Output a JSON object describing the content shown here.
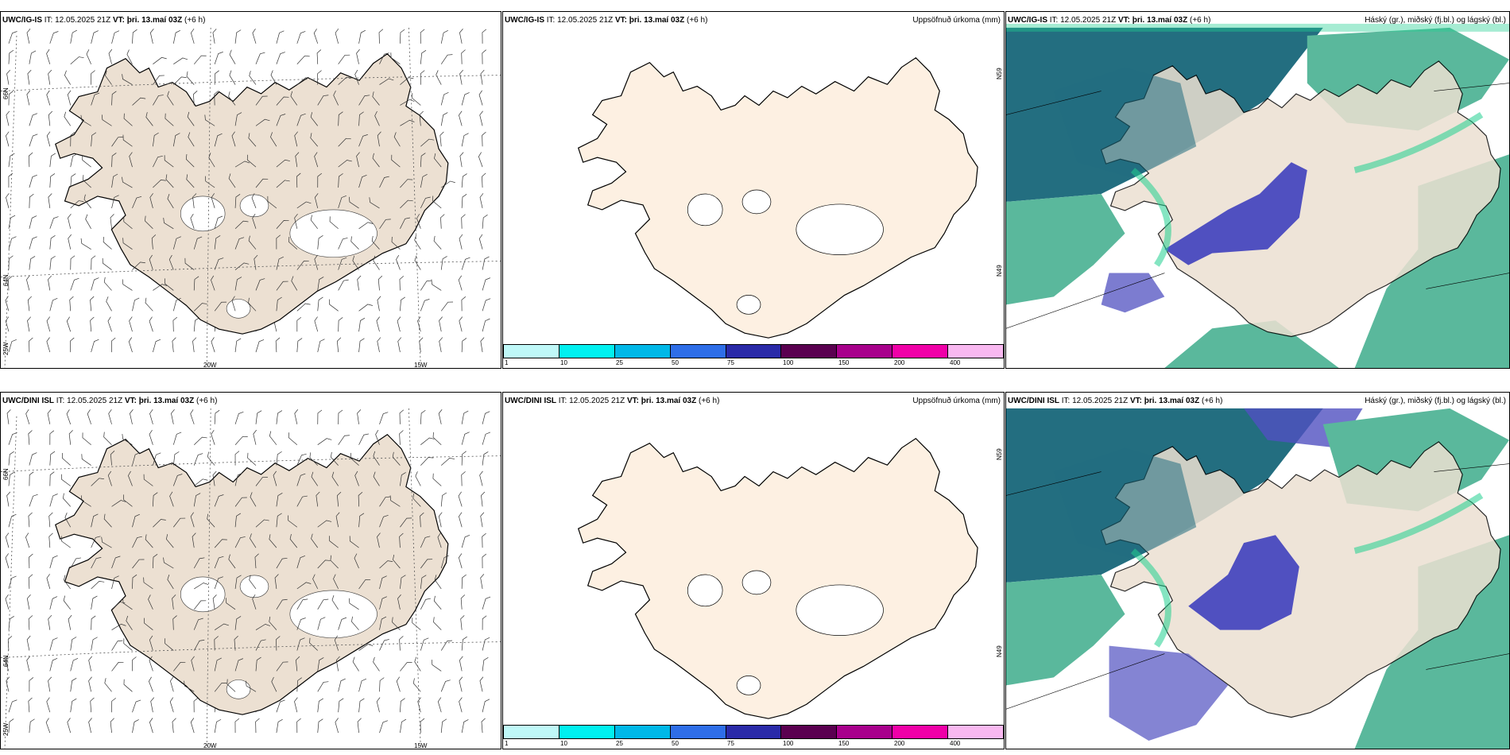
{
  "rows": [
    {
      "model": "UWC/IG-IS",
      "it_label": "IT: 12.05.2025 21Z",
      "vt_label": "VT: þri. 13.maí 03Z",
      "lead": "(+6 h)"
    },
    {
      "model": "UWC/DINI ISL",
      "it_label": "IT: 12.05.2025 21Z",
      "vt_label": "VT: þri. 13.maí 03Z",
      "lead": "(+6 h)"
    }
  ],
  "panel_titles": {
    "precip": "Uppsöfnuð úrkoma (mm)",
    "clouds": "Háský (gr.), miðský (fj.bl.) og lágský (bl.)"
  },
  "axis_labels": {
    "lat_66": "66N",
    "lat_64": "64N",
    "lat_65s": "N59",
    "lat_64s": "N49",
    "lon_20": "20W",
    "lon_15": "15W",
    "lon_25": "25W"
  },
  "colorbar": {
    "ticks": [
      "1",
      "10",
      "25",
      "50",
      "75",
      "100",
      "150",
      "200",
      "400"
    ],
    "colors": [
      "#bff8f8",
      "#00f0f0",
      "#00b8e8",
      "#2e6ee8",
      "#2a2aa8",
      "#5a0050",
      "#a8008c",
      "#f000a8",
      "#f8b8f0"
    ]
  },
  "colors": {
    "land_wind": "#ece0d2",
    "land_precip": "#fdf0e2",
    "cloud_high": "#5ab89c",
    "cloud_mid": "#236e80",
    "cloud_low": "#5050c0",
    "cloud_edge": "#20d090"
  }
}
